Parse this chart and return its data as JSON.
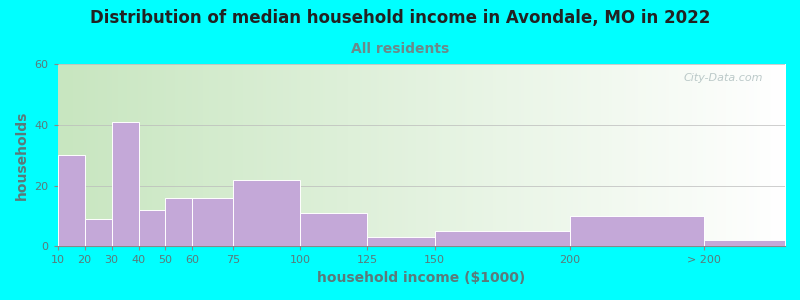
{
  "title": "Distribution of median household income in Avondale, MO in 2022",
  "subtitle": "All residents",
  "xlabel": "household income ($1000)",
  "ylabel": "households",
  "background_outer": "#00FFFF",
  "bar_color": "#C4A8D8",
  "bar_edge_color": "#FFFFFF",
  "gradient_left": "#C8E6C0",
  "gradient_right": "#FFFFFF",
  "ylim": [
    0,
    60
  ],
  "yticks": [
    0,
    20,
    40,
    60
  ],
  "categories": [
    "10",
    "20",
    "30",
    "40",
    "50",
    "60",
    "75",
    "100",
    "125",
    "150",
    "200",
    "> 200"
  ],
  "values": [
    30,
    9,
    41,
    12,
    16,
    16,
    22,
    11,
    3,
    5,
    10,
    2
  ],
  "bar_lefts": [
    10,
    20,
    30,
    40,
    50,
    60,
    75,
    100,
    125,
    150,
    200,
    250
  ],
  "bar_widths": [
    10,
    10,
    10,
    10,
    10,
    15,
    25,
    25,
    25,
    50,
    50,
    30
  ],
  "tick_positions": [
    10,
    20,
    30,
    40,
    50,
    60,
    75,
    100,
    125,
    150,
    200,
    250
  ],
  "xlim": [
    10,
    280
  ],
  "watermark": "City-Data.com",
  "title_fontsize": 12,
  "subtitle_fontsize": 10,
  "axis_label_fontsize": 10,
  "title_color": "#222222",
  "subtitle_color": "#6a8a8a",
  "axis_color": "#5a7a7a"
}
